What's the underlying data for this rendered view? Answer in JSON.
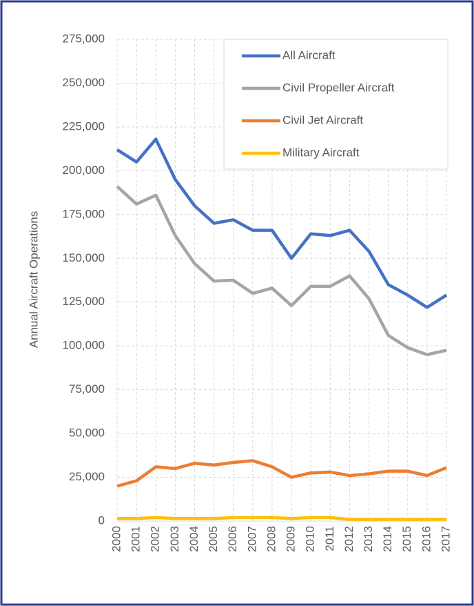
{
  "chart_data": {
    "type": "line",
    "y_label": "Annual Aircraft Operations",
    "categories": [
      "2000",
      "2001",
      "2002",
      "2003",
      "2004",
      "2005",
      "2006",
      "2007",
      "2008",
      "2009",
      "2010",
      "2011",
      "2012",
      "2013",
      "2014",
      "2015",
      "2016",
      "2017"
    ],
    "series": [
      {
        "name": "All Aircraft",
        "color": "#4472c4",
        "values": [
          212000,
          205000,
          218000,
          195000,
          180000,
          170000,
          172000,
          166000,
          166000,
          150000,
          164000,
          163000,
          166000,
          154000,
          135000,
          129000,
          122000,
          129000
        ]
      },
      {
        "name": "Civil Propeller Aircraft",
        "color": "#a5a5a5",
        "values": [
          191000,
          181000,
          186000,
          163000,
          147000,
          137000,
          137500,
          130000,
          133000,
          123000,
          134000,
          134000,
          140000,
          127000,
          106000,
          99000,
          95000,
          97500
        ]
      },
      {
        "name": "Civil Jet Aircraft",
        "color": "#ed7d31",
        "values": [
          20000,
          23000,
          31000,
          30000,
          33000,
          32000,
          33500,
          34500,
          31000,
          25000,
          27500,
          28000,
          26000,
          27000,
          28500,
          28500,
          26000,
          30500
        ]
      },
      {
        "name": "Military Aircraft",
        "color": "#ffc000",
        "values": [
          1500,
          1500,
          2000,
          1500,
          1500,
          1500,
          2000,
          2000,
          2000,
          1500,
          2000,
          2000,
          1000,
          1000,
          1000,
          1000,
          1000,
          1000
        ]
      }
    ],
    "ylim": [
      0,
      275000
    ],
    "yticks": [
      0,
      {
        "value": 25000,
        "label": "25,000"
      },
      {
        "value": 50000,
        "label": "50,000"
      },
      {
        "value": 75000,
        "label": "75,000"
      },
      {
        "value": 100000,
        "label": "100,000"
      },
      {
        "value": 125000,
        "label": "125,000"
      },
      {
        "value": 150000,
        "label": "150,000"
      },
      {
        "value": 175000,
        "label": "175,000"
      },
      {
        "value": 200000,
        "label": "200,000"
      },
      {
        "value": 225000,
        "label": "225,000"
      },
      {
        "value": 250000,
        "label": "250,000"
      },
      {
        "value": 275000,
        "label": "275,000"
      }
    ],
    "grid": true,
    "legend": "top-right"
  }
}
